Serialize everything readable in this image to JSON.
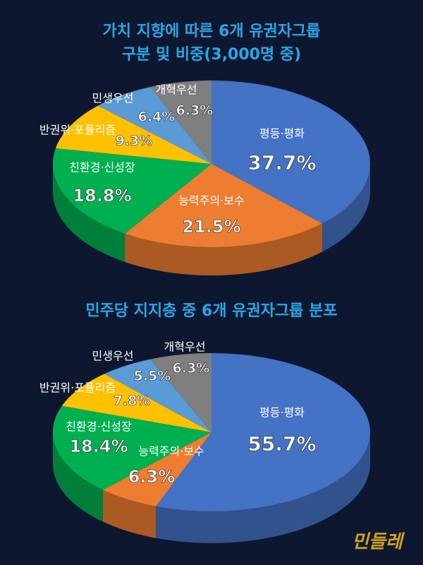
{
  "chart_data": [
    {
      "type": "pie",
      "title": [
        "가치 지향에 따른 6개 유권자그룹",
        "구분 및 비중(3,000명 중)"
      ],
      "categories": [
        "평등·평화",
        "능력주의·보수",
        "친환경·신성장",
        "반권위·포퓰리즘",
        "민생우선",
        "개혁우선"
      ],
      "values": [
        37.7,
        21.5,
        18.8,
        9.3,
        6.4,
        6.3
      ],
      "value_labels": [
        "37.7%",
        "21.5%",
        "18.8%",
        "9.3%",
        "6.4%",
        "6.3%"
      ],
      "colors": [
        "#4472c4",
        "#ed7d31",
        "#00b050",
        "#ffc000",
        "#5b9bd5",
        "#7f7f7f"
      ]
    },
    {
      "type": "pie",
      "title": [
        "민주당 지지층 중 6개 유권자그룹 분포"
      ],
      "categories": [
        "평등·평화",
        "능력주의·보수",
        "친환경·신성장",
        "반권위·포퓰리즘",
        "민생우선",
        "개혁우선"
      ],
      "values": [
        55.7,
        6.3,
        18.4,
        7.8,
        5.5,
        6.3
      ],
      "value_labels": [
        "55.7%",
        "6.3%",
        "18.4%",
        "7.8%",
        "5.5%",
        "6.3%"
      ],
      "colors": [
        "#4472c4",
        "#ed7d31",
        "#00b050",
        "#ffc000",
        "#5b9bd5",
        "#7f7f7f"
      ]
    }
  ],
  "logo": "민들레"
}
